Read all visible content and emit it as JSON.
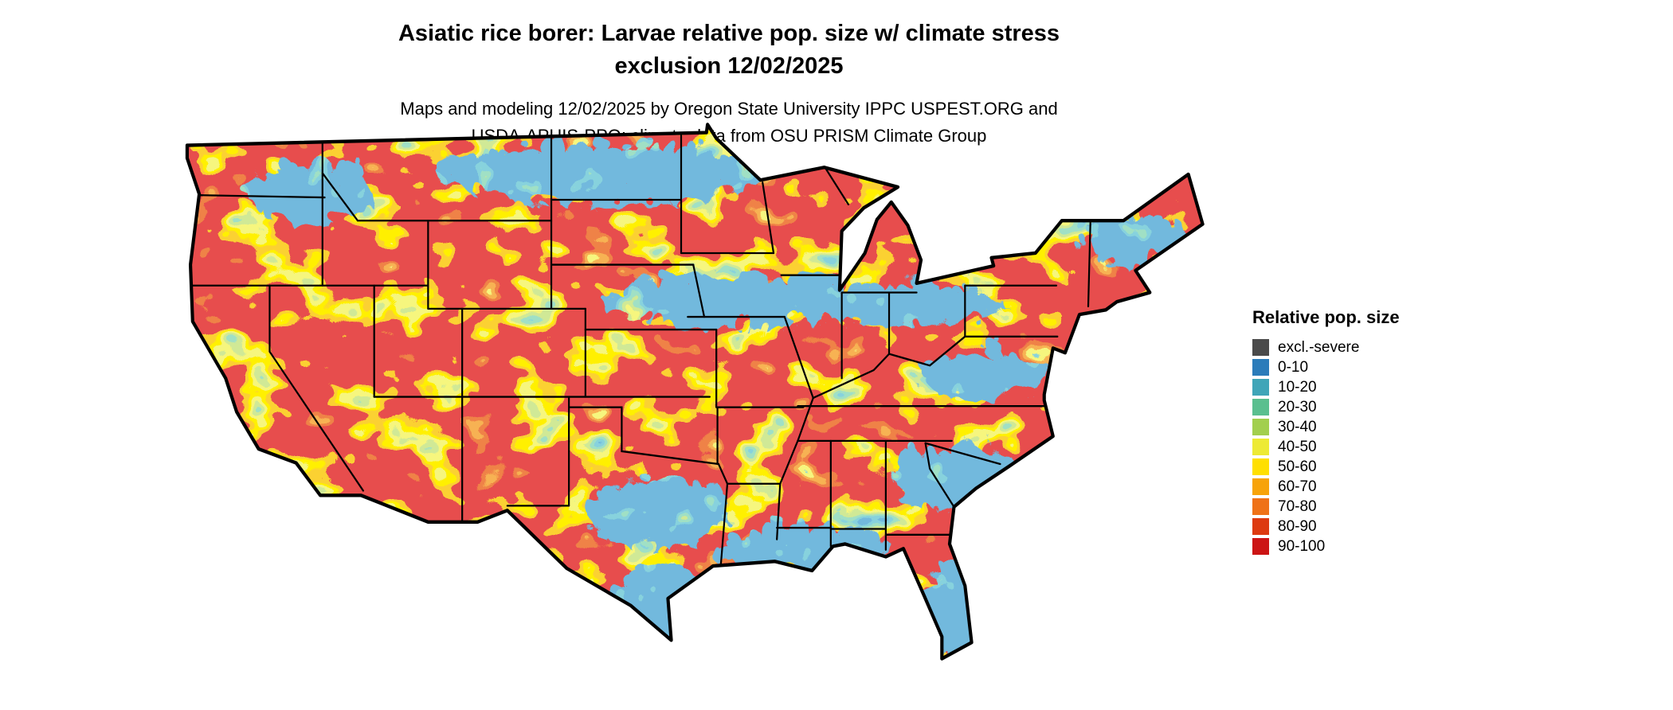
{
  "title": {
    "line1": "Asiatic rice borer: Larvae relative pop. size w/ climate stress",
    "line2": "exclusion 12/02/2025"
  },
  "subtitle": {
    "line1": "Maps and modeling 12/02/2025 by Oregon State University IPPC USPEST.ORG and",
    "line2": "USDA-APHIS-PPQ; climate data from OSU PRISM Climate Group"
  },
  "legend": {
    "title": "Relative pop. size",
    "items": [
      {
        "label": "excl.-severe",
        "color": "#4a4a4a"
      },
      {
        "label": "0-10",
        "color": "#2b7cba"
      },
      {
        "label": "10-20",
        "color": "#3fa5b8"
      },
      {
        "label": "20-30",
        "color": "#5abf8f"
      },
      {
        "label": "30-40",
        "color": "#a2cf4e"
      },
      {
        "label": "40-50",
        "color": "#edea35"
      },
      {
        "label": "50-60",
        "color": "#ffdf00"
      },
      {
        "label": "60-70",
        "color": "#f7a309"
      },
      {
        "label": "70-80",
        "color": "#ef7217"
      },
      {
        "label": "80-90",
        "color": "#dd3a10"
      },
      {
        "label": "90-100",
        "color": "#cc1414"
      }
    ]
  }
}
